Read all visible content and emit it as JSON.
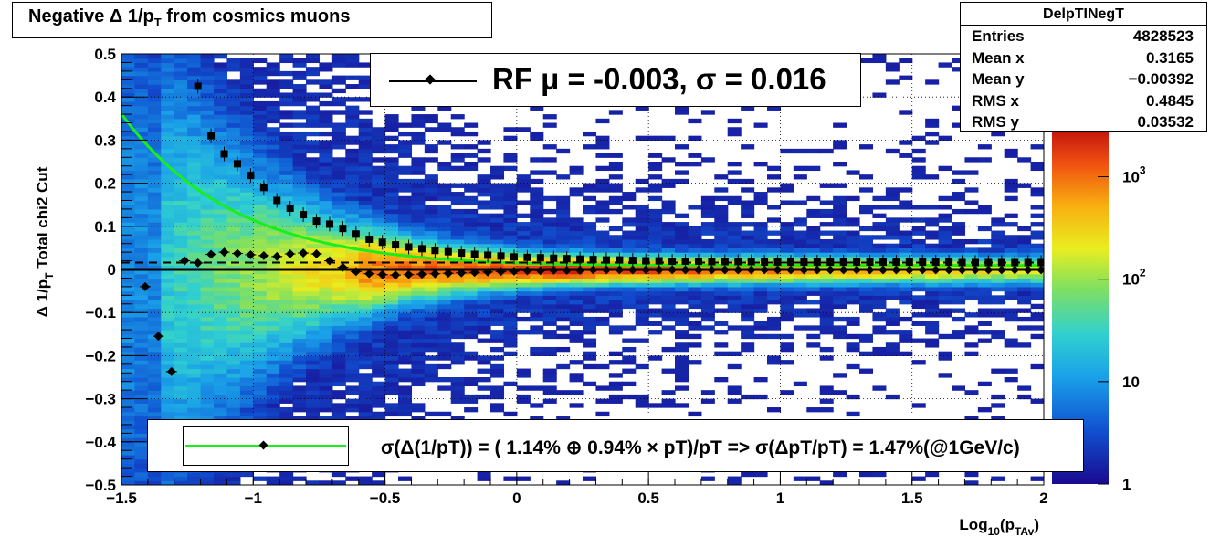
{
  "title": "Negative Δ 1/p",
  "title_sub": "T",
  "title_rest": " from cosmics muons",
  "stats": {
    "name": "DelpTINegT",
    "rows": [
      {
        "label": "Entries",
        "value": "4828523"
      },
      {
        "label": "Mean x",
        "value": "0.3165"
      },
      {
        "label": "Mean y",
        "value": "−0.00392"
      },
      {
        "label": "RMS x",
        "value": "0.4845"
      },
      {
        "label": "RMS y",
        "value": "0.03532"
      }
    ]
  },
  "rf_label": "RF μ = -0.003, σ =   0.016",
  "fit_label": "σ(Δ(1/pT)) = ( 1.14% ⊕  0.94% × pT)/pT => σ(ΔpT/pT) =  1.47%(@1GeV/c)",
  "colors": {
    "fit_curve": "#1aee1a",
    "markers": "#000000"
  },
  "chart_data": {
    "type": "heatmap",
    "xlabel": "Log",
    "xlabel_sub1": "10",
    "xlabel_mid": "(p",
    "xlabel_sub2": "TAv",
    "xlabel_end": ")",
    "ylabel": "Δ 1/p",
    "ylabel_sub": "T",
    "ylabel_rest": "   Total chi2 Cut",
    "xlim": [
      -1.5,
      2.0
    ],
    "ylim": [
      -0.5,
      0.5
    ],
    "log_z": true,
    "grid": true,
    "x_ticks": [
      "−1.5",
      "−1",
      "−0.5",
      "0",
      "0.5",
      "1",
      "1.5",
      "2"
    ],
    "x_tick_values": [
      -1.5,
      -1,
      -0.5,
      0,
      0.5,
      1,
      1.5,
      2
    ],
    "y_ticks": [
      "0.5",
      "0.4",
      "0.3",
      "0.2",
      "0.1",
      "0",
      "−0.1",
      "−0.2",
      "−0.3",
      "−0.4",
      "−0.5"
    ],
    "y_tick_values": [
      0.5,
      0.4,
      0.3,
      0.2,
      0.1,
      0,
      -0.1,
      -0.2,
      -0.3,
      -0.4,
      -0.5
    ],
    "z_ticks": [
      {
        "base": "1",
        "exp": "",
        "value": 1
      },
      {
        "base": "10",
        "exp": "",
        "value": 10
      },
      {
        "base": "10",
        "exp": "2",
        "value": 100
      },
      {
        "base": "10",
        "exp": "3",
        "value": 1000
      }
    ],
    "z_range": [
      1,
      3000
    ],
    "mean_markers": [
      {
        "x": -1.41,
        "y": -0.04
      },
      {
        "x": -1.36,
        "y": -0.155
      },
      {
        "x": -1.31,
        "y": -0.237
      },
      {
        "x": -1.26,
        "y": 0.02
      },
      {
        "x": -1.21,
        "y": 0.015
      },
      {
        "x": -1.16,
        "y": 0.035
      },
      {
        "x": -1.11,
        "y": 0.04
      },
      {
        "x": -1.06,
        "y": 0.037
      },
      {
        "x": -1.01,
        "y": 0.034
      },
      {
        "x": -0.96,
        "y": 0.032
      },
      {
        "x": -0.91,
        "y": 0.03
      },
      {
        "x": -0.86,
        "y": 0.036
      },
      {
        "x": -0.81,
        "y": 0.038
      },
      {
        "x": -0.76,
        "y": 0.036
      },
      {
        "x": -0.71,
        "y": 0.02
      },
      {
        "x": -0.66,
        "y": 0.005
      },
      {
        "x": -0.61,
        "y": -0.005
      },
      {
        "x": -0.56,
        "y": -0.01
      },
      {
        "x": -0.51,
        "y": -0.012
      },
      {
        "x": -0.46,
        "y": -0.013
      },
      {
        "x": -0.41,
        "y": -0.012
      },
      {
        "x": -0.36,
        "y": -0.011
      },
      {
        "x": -0.31,
        "y": -0.01
      },
      {
        "x": -0.26,
        "y": -0.009
      },
      {
        "x": -0.21,
        "y": -0.008
      },
      {
        "x": -0.16,
        "y": -0.007
      },
      {
        "x": -0.11,
        "y": -0.006
      },
      {
        "x": -0.06,
        "y": -0.005
      },
      {
        "x": -0.01,
        "y": -0.004
      },
      {
        "x": 0.04,
        "y": -0.003
      },
      {
        "x": 0.09,
        "y": -0.003
      },
      {
        "x": 0.14,
        "y": -0.002
      },
      {
        "x": 0.19,
        "y": -0.002
      },
      {
        "x": 0.24,
        "y": -0.002
      },
      {
        "x": 0.29,
        "y": -0.001
      },
      {
        "x": 0.34,
        "y": -0.001
      },
      {
        "x": 0.39,
        "y": -0.001
      },
      {
        "x": 0.44,
        "y": -0.001
      },
      {
        "x": 0.49,
        "y": -0.001
      },
      {
        "x": 0.54,
        "y": -0.001
      },
      {
        "x": 0.59,
        "y": -0.001
      },
      {
        "x": 0.64,
        "y": -0.001
      },
      {
        "x": 0.69,
        "y": -0.001
      },
      {
        "x": 0.74,
        "y": -0.001
      },
      {
        "x": 0.79,
        "y": -0.001
      },
      {
        "x": 0.84,
        "y": -0.001
      },
      {
        "x": 0.89,
        "y": -0.001
      },
      {
        "x": 0.94,
        "y": -0.001
      },
      {
        "x": 0.99,
        "y": -0.001
      },
      {
        "x": 1.04,
        "y": -0.001
      },
      {
        "x": 1.09,
        "y": -0.001
      },
      {
        "x": 1.14,
        "y": -0.001
      },
      {
        "x": 1.19,
        "y": -0.001
      },
      {
        "x": 1.24,
        "y": -0.001
      },
      {
        "x": 1.29,
        "y": -0.001
      },
      {
        "x": 1.34,
        "y": -0.001
      },
      {
        "x": 1.39,
        "y": -0.001
      },
      {
        "x": 1.44,
        "y": -0.001
      },
      {
        "x": 1.49,
        "y": -0.001
      },
      {
        "x": 1.54,
        "y": -0.001
      },
      {
        "x": 1.59,
        "y": -0.001
      },
      {
        "x": 1.64,
        "y": -0.001
      },
      {
        "x": 1.69,
        "y": -0.001
      },
      {
        "x": 1.74,
        "y": -0.001
      },
      {
        "x": 1.79,
        "y": -0.001
      },
      {
        "x": 1.84,
        "y": -0.001
      },
      {
        "x": 1.89,
        "y": -0.001
      },
      {
        "x": 1.94,
        "y": -0.001
      },
      {
        "x": 1.99,
        "y": -0.001
      }
    ],
    "sigma_markers": [
      {
        "x": -1.21,
        "y": 0.425
      },
      {
        "x": -1.16,
        "y": 0.31
      },
      {
        "x": -1.11,
        "y": 0.268
      },
      {
        "x": -1.06,
        "y": 0.245
      },
      {
        "x": -1.01,
        "y": 0.218
      },
      {
        "x": -0.96,
        "y": 0.19
      },
      {
        "x": -0.91,
        "y": 0.16
      },
      {
        "x": -0.86,
        "y": 0.142
      },
      {
        "x": -0.81,
        "y": 0.127
      },
      {
        "x": -0.76,
        "y": 0.112
      },
      {
        "x": -0.71,
        "y": 0.105
      },
      {
        "x": -0.66,
        "y": 0.095
      },
      {
        "x": -0.61,
        "y": 0.082
      },
      {
        "x": -0.56,
        "y": 0.07
      },
      {
        "x": -0.51,
        "y": 0.063
      },
      {
        "x": -0.46,
        "y": 0.057
      },
      {
        "x": -0.41,
        "y": 0.052
      },
      {
        "x": -0.36,
        "y": 0.048
      },
      {
        "x": -0.31,
        "y": 0.044
      },
      {
        "x": -0.26,
        "y": 0.041
      },
      {
        "x": -0.21,
        "y": 0.038
      },
      {
        "x": -0.16,
        "y": 0.035
      },
      {
        "x": -0.11,
        "y": 0.033
      },
      {
        "x": -0.06,
        "y": 0.031
      },
      {
        "x": -0.01,
        "y": 0.029
      },
      {
        "x": 0.04,
        "y": 0.028
      },
      {
        "x": 0.09,
        "y": 0.027
      },
      {
        "x": 0.14,
        "y": 0.026
      },
      {
        "x": 0.19,
        "y": 0.025
      },
      {
        "x": 0.24,
        "y": 0.024
      },
      {
        "x": 0.29,
        "y": 0.023
      },
      {
        "x": 0.34,
        "y": 0.022
      },
      {
        "x": 0.39,
        "y": 0.022
      },
      {
        "x": 0.44,
        "y": 0.021
      },
      {
        "x": 0.49,
        "y": 0.02
      },
      {
        "x": 0.54,
        "y": 0.02
      },
      {
        "x": 0.59,
        "y": 0.019
      },
      {
        "x": 0.64,
        "y": 0.019
      },
      {
        "x": 0.69,
        "y": 0.019
      },
      {
        "x": 0.74,
        "y": 0.018
      },
      {
        "x": 0.79,
        "y": 0.018
      },
      {
        "x": 0.84,
        "y": 0.018
      },
      {
        "x": 0.89,
        "y": 0.018
      },
      {
        "x": 0.94,
        "y": 0.017
      },
      {
        "x": 0.99,
        "y": 0.017
      },
      {
        "x": 1.04,
        "y": 0.017
      },
      {
        "x": 1.09,
        "y": 0.017
      },
      {
        "x": 1.14,
        "y": 0.017
      },
      {
        "x": 1.19,
        "y": 0.017
      },
      {
        "x": 1.24,
        "y": 0.017
      },
      {
        "x": 1.29,
        "y": 0.017
      },
      {
        "x": 1.34,
        "y": 0.017
      },
      {
        "x": 1.39,
        "y": 0.017
      },
      {
        "x": 1.44,
        "y": 0.017
      },
      {
        "x": 1.49,
        "y": 0.017
      },
      {
        "x": 1.54,
        "y": 0.017
      },
      {
        "x": 1.59,
        "y": 0.017
      },
      {
        "x": 1.64,
        "y": 0.017
      },
      {
        "x": 1.69,
        "y": 0.016
      },
      {
        "x": 1.74,
        "y": 0.016
      },
      {
        "x": 1.79,
        "y": 0.016
      },
      {
        "x": 1.84,
        "y": 0.016
      },
      {
        "x": 1.89,
        "y": 0.016
      },
      {
        "x": 1.94,
        "y": 0.016
      },
      {
        "x": 1.99,
        "y": 0.016
      }
    ],
    "fit": {
      "a_percent": 1.14,
      "b_percent": 0.94,
      "x_from": -1.5,
      "x_to": 2.0
    },
    "mean_line_y": 0.0,
    "sigma_line_y": 0.016
  }
}
